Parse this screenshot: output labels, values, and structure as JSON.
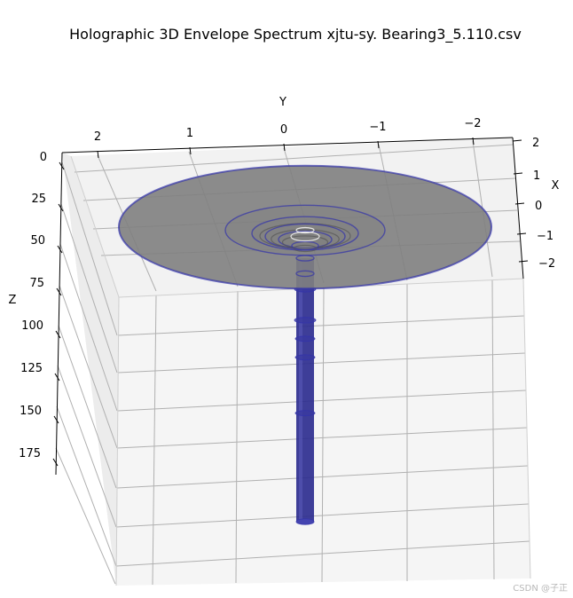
{
  "chart_data": {
    "type": "3d-surface",
    "title": "Holographic 3D Envelope Spectrum  xjtu-sy. Bearing3_5.110.csv",
    "xlabel": "X",
    "ylabel": "Y",
    "zlabel": "Z",
    "x_ticks": [
      "2",
      "1",
      "0",
      "−1",
      "−2"
    ],
    "y_ticks": [
      "2",
      "1",
      "0",
      "−1",
      "−2"
    ],
    "z_ticks": [
      "0",
      "25",
      "50",
      "75",
      "100",
      "125",
      "150",
      "175"
    ],
    "xlim": [
      -2.5,
      2.5
    ],
    "ylim": [
      -2.5,
      2.5
    ],
    "zlim": [
      0,
      190
    ],
    "zaxis_inverted": true,
    "grid": true,
    "orbit_color": "#3333aa",
    "surface_color": "#808080",
    "orbits": [
      {
        "z": 0,
        "radius": 2.1
      },
      {
        "z": 2,
        "radius": 0.9
      },
      {
        "z": 4,
        "radius": 0.6
      },
      {
        "z": 6,
        "radius": 0.45
      },
      {
        "z": 8,
        "radius": 0.3
      },
      {
        "z": 12,
        "radius": 0.15
      },
      {
        "z": 20,
        "radius": 0.1
      },
      {
        "z": 30,
        "radius": 0.1
      },
      {
        "z": 190,
        "radius": 0.1
      }
    ]
  },
  "watermark": "CSDN @子正"
}
